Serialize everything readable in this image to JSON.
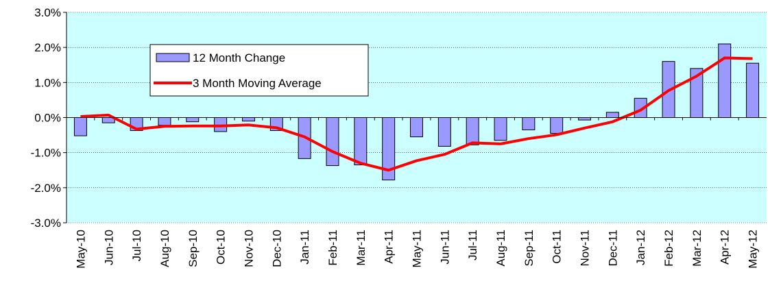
{
  "chart_data": {
    "type": "bar_line",
    "categories": [
      "May-10",
      "Jun-10",
      "Jul-10",
      "Aug-10",
      "Sep-10",
      "Oct-10",
      "Nov-10",
      "Dec-10",
      "Jan-11",
      "Feb-11",
      "Mar-11",
      "Apr-11",
      "May-11",
      "Jun-11",
      "Jul-11",
      "Aug-11",
      "Sep-11",
      "Oct-11",
      "Nov-11",
      "Dec-11",
      "Jan-12",
      "Feb-12",
      "Mar-12",
      "Apr-12",
      "May-12"
    ],
    "series": [
      {
        "name": "12 Month Change",
        "type": "bar",
        "color": "#9999ff",
        "values": [
          -0.52,
          -0.15,
          -0.37,
          -0.22,
          -0.12,
          -0.4,
          -0.1,
          -0.37,
          -1.17,
          -1.37,
          -1.35,
          -1.78,
          -0.55,
          -0.82,
          -0.78,
          -0.65,
          -0.35,
          -0.45,
          -0.07,
          0.15,
          0.55,
          1.6,
          1.4,
          2.1,
          1.55
        ]
      },
      {
        "name": "3 Month Moving Average",
        "type": "line",
        "color": "#ff0000",
        "values": [
          0.03,
          0.07,
          -0.33,
          -0.25,
          -0.24,
          -0.24,
          -0.21,
          -0.29,
          -0.55,
          -0.97,
          -1.3,
          -1.5,
          -1.23,
          -1.05,
          -0.72,
          -0.75,
          -0.6,
          -0.49,
          -0.3,
          -0.12,
          0.21,
          0.77,
          1.18,
          1.7,
          1.68
        ]
      }
    ],
    "ylim": [
      -3,
      3
    ],
    "yticks": [
      {
        "value": -3,
        "label": "-3.0%"
      },
      {
        "value": -2,
        "label": "-2.0%"
      },
      {
        "value": -1,
        "label": "-1.0%"
      },
      {
        "value": 0,
        "label": "0.0%"
      },
      {
        "value": 1,
        "label": "1.0%"
      },
      {
        "value": 2,
        "label": "2.0%"
      },
      {
        "value": 3,
        "label": "3.0%"
      }
    ],
    "grid": true,
    "background": "#ccffff"
  }
}
